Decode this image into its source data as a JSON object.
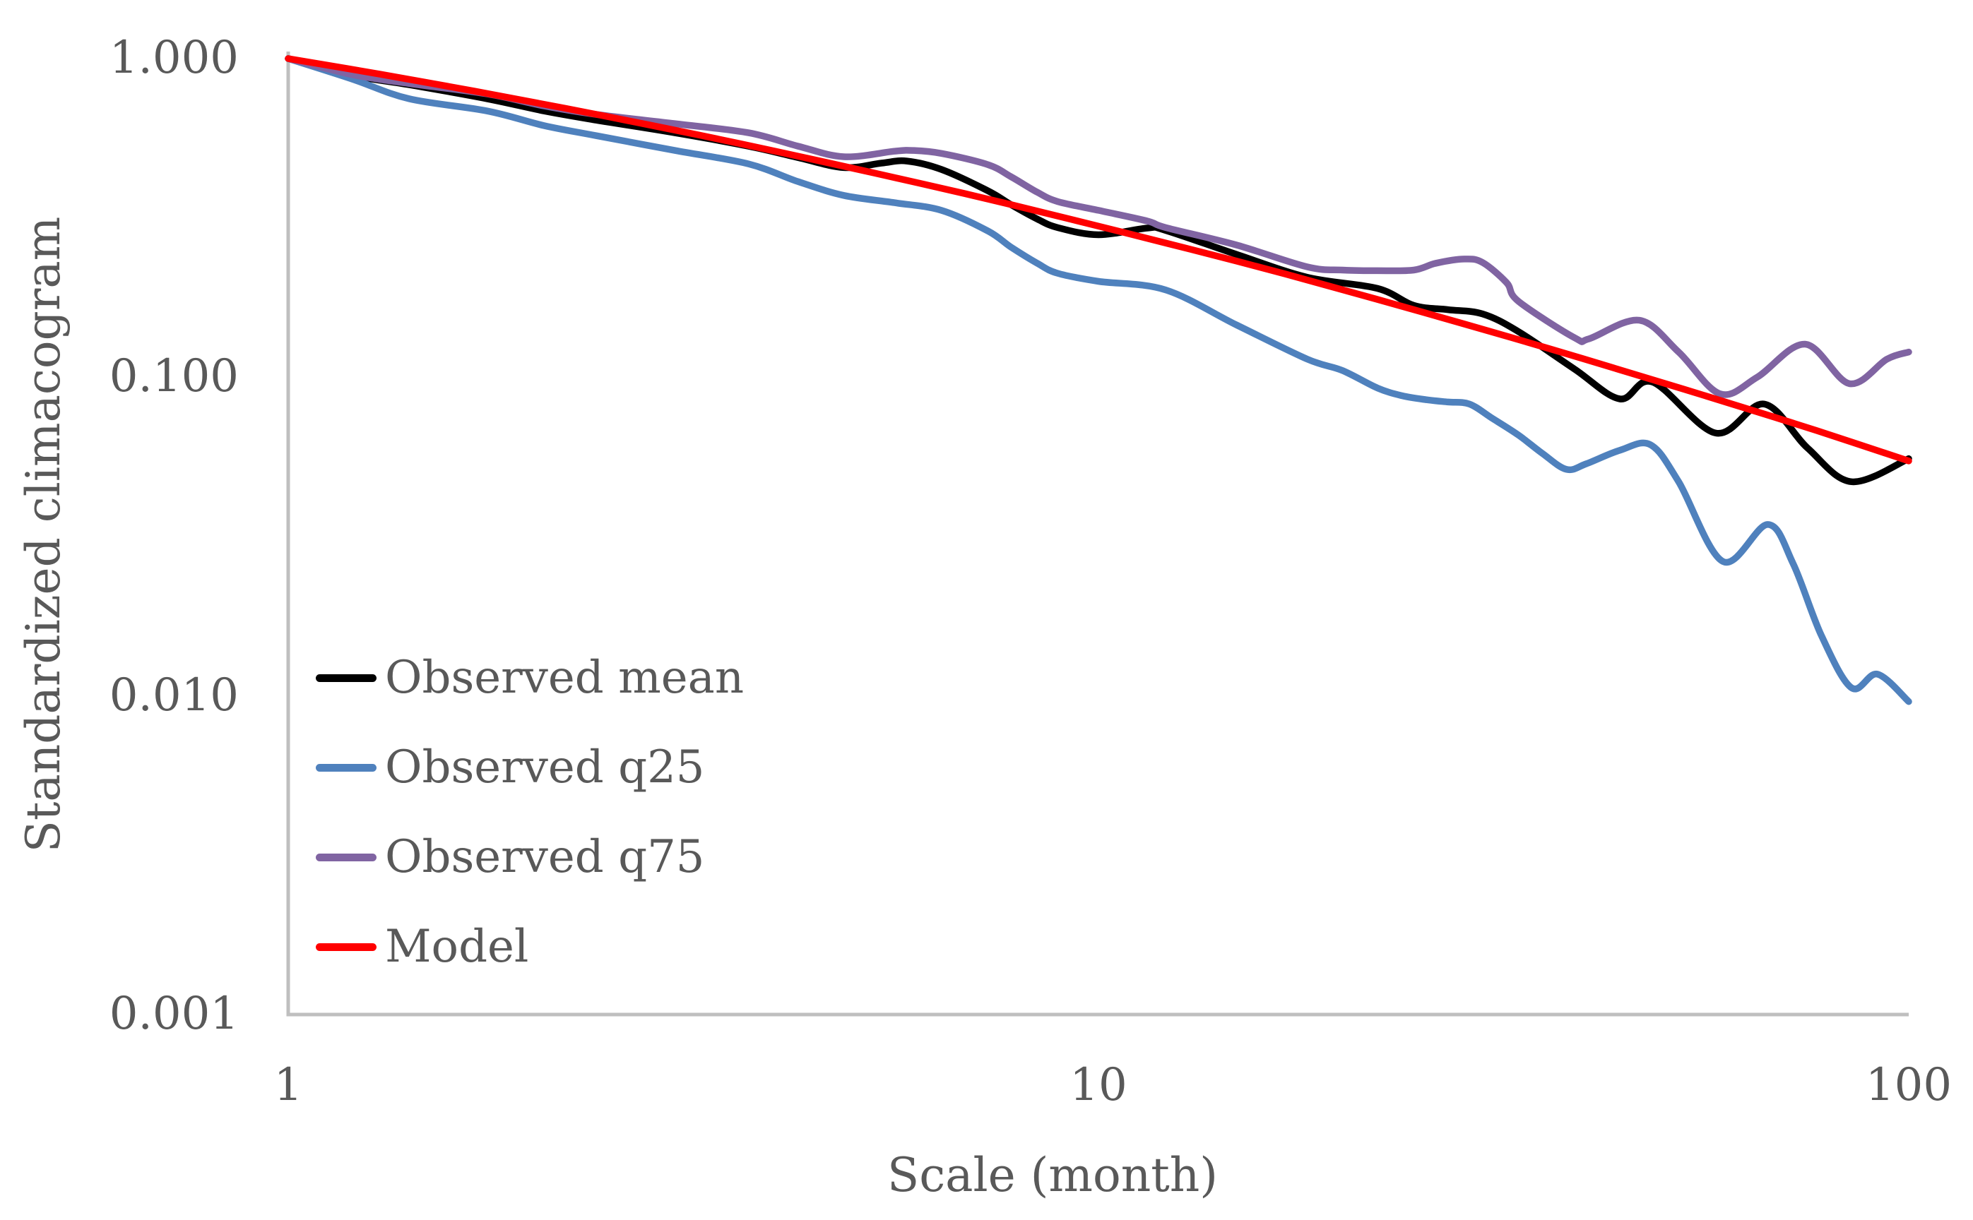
{
  "chart_data": {
    "type": "line",
    "title": "",
    "xlabel": "Scale (month)",
    "ylabel": "Standardized climacogram",
    "x_scale": "log",
    "y_scale": "log",
    "xlim": [
      1,
      100
    ],
    "ylim": [
      0.001,
      1.0
    ],
    "grid": false,
    "legend_position": "inside-lower-left",
    "x_ticks": [
      {
        "label": "1",
        "value": 1
      },
      {
        "label": "10",
        "value": 10
      },
      {
        "label": "100",
        "value": 100
      }
    ],
    "y_ticks": [
      {
        "label": "1.000",
        "value": 1
      },
      {
        "label": "0.100",
        "value": 0.1
      },
      {
        "label": "0.010",
        "value": 0.01
      },
      {
        "label": "0.001",
        "value": 0.001
      }
    ],
    "series": [
      {
        "name": "Observed mean",
        "color": "#000000",
        "points": [
          [
            1,
            1.0
          ],
          [
            1.2,
            0.885
          ],
          [
            1.41,
            0.828
          ],
          [
            1.76,
            0.748
          ],
          [
            2.07,
            0.685
          ],
          [
            2.4,
            0.641
          ],
          [
            3.0,
            0.585
          ],
          [
            3.7,
            0.531
          ],
          [
            4.26,
            0.489
          ],
          [
            4.85,
            0.455
          ],
          [
            5.4,
            0.47
          ],
          [
            5.8,
            0.477
          ],
          [
            6.4,
            0.449
          ],
          [
            7.3,
            0.385
          ],
          [
            7.8,
            0.348
          ],
          [
            8.4,
            0.314
          ],
          [
            8.9,
            0.295
          ],
          [
            10,
            0.28
          ],
          [
            11.5,
            0.294
          ],
          [
            12.1,
            0.289
          ],
          [
            14.8,
            0.243
          ],
          [
            18.1,
            0.206
          ],
          [
            22.1,
            0.19
          ],
          [
            24.5,
            0.168
          ],
          [
            27,
            0.163
          ],
          [
            29.8,
            0.158
          ],
          [
            33,
            0.139
          ],
          [
            38.7,
            0.106
          ],
          [
            44,
            0.0855
          ],
          [
            48.3,
            0.0966
          ],
          [
            57.8,
            0.0668
          ],
          [
            66.3,
            0.0824
          ],
          [
            75,
            0.06
          ],
          [
            85,
            0.047
          ],
          [
            100,
            0.0555
          ]
        ]
      },
      {
        "name": "Observed q25",
        "color": "#4F81BD",
        "points": [
          [
            1,
            1.0
          ],
          [
            1.2,
            0.862
          ],
          [
            1.41,
            0.748
          ],
          [
            1.76,
            0.685
          ],
          [
            2.07,
            0.616
          ],
          [
            2.4,
            0.573
          ],
          [
            3.0,
            0.515
          ],
          [
            3.7,
            0.467
          ],
          [
            4.26,
            0.411
          ],
          [
            4.85,
            0.372
          ],
          [
            5.6,
            0.353
          ],
          [
            6.4,
            0.334
          ],
          [
            7.3,
            0.288
          ],
          [
            7.8,
            0.256
          ],
          [
            8.4,
            0.228
          ],
          [
            8.9,
            0.212
          ],
          [
            10,
            0.2
          ],
          [
            12.1,
            0.188
          ],
          [
            14.8,
            0.146
          ],
          [
            18.1,
            0.114
          ],
          [
            20,
            0.105
          ],
          [
            22.1,
            0.0925
          ],
          [
            23.7,
            0.0875
          ],
          [
            25.4,
            0.085
          ],
          [
            27,
            0.0836
          ],
          [
            28.7,
            0.0824
          ],
          [
            30.6,
            0.0744
          ],
          [
            33,
            0.0658
          ],
          [
            35.3,
            0.0577
          ],
          [
            37.8,
            0.0514
          ],
          [
            40,
            0.0535
          ],
          [
            44,
            0.059
          ],
          [
            48,
            0.0614
          ],
          [
            52,
            0.047
          ],
          [
            59,
            0.0264
          ],
          [
            67,
            0.0345
          ],
          [
            72,
            0.026
          ],
          [
            78,
            0.0155
          ],
          [
            85,
            0.0106
          ],
          [
            91.5,
            0.0117
          ],
          [
            100,
            0.0096
          ]
        ]
      },
      {
        "name": "Observed q75",
        "color": "#8064A2",
        "points": [
          [
            1,
            1.0
          ],
          [
            1.2,
            0.89
          ],
          [
            1.41,
            0.835
          ],
          [
            1.76,
            0.775
          ],
          [
            2.07,
            0.71
          ],
          [
            2.4,
            0.668
          ],
          [
            3.0,
            0.625
          ],
          [
            3.7,
            0.585
          ],
          [
            4.26,
            0.531
          ],
          [
            4.85,
            0.492
          ],
          [
            5.6,
            0.512
          ],
          [
            5.9,
            0.515
          ],
          [
            6.4,
            0.504
          ],
          [
            7.3,
            0.465
          ],
          [
            7.8,
            0.426
          ],
          [
            8.4,
            0.381
          ],
          [
            8.9,
            0.356
          ],
          [
            10,
            0.334
          ],
          [
            11.5,
            0.309
          ],
          [
            12.1,
            0.295
          ],
          [
            14.8,
            0.26
          ],
          [
            18.1,
            0.222
          ],
          [
            20,
            0.217
          ],
          [
            22.1,
            0.216
          ],
          [
            24.5,
            0.217
          ],
          [
            26.1,
            0.228
          ],
          [
            28.3,
            0.235
          ],
          [
            29.8,
            0.229
          ],
          [
            31.9,
            0.198
          ],
          [
            33,
            0.173
          ],
          [
            38.7,
            0.133
          ],
          [
            40.3,
            0.132
          ],
          [
            46.5,
            0.151
          ],
          [
            52,
            0.12
          ],
          [
            58.5,
            0.0887
          ],
          [
            65,
            0.1
          ],
          [
            74.5,
            0.127
          ],
          [
            84.5,
            0.0955
          ],
          [
            94,
            0.114
          ],
          [
            100,
            0.12
          ]
        ]
      },
      {
        "name": "Model",
        "color": "#FF0000",
        "points": [
          [
            1,
            1.0
          ],
          [
            1.3,
            0.893
          ],
          [
            1.7,
            0.79
          ],
          [
            2.2,
            0.698
          ],
          [
            2.8,
            0.618
          ],
          [
            3.6,
            0.542
          ],
          [
            4.6,
            0.473
          ],
          [
            6,
            0.407
          ],
          [
            7.7,
            0.351
          ],
          [
            10,
            0.298
          ],
          [
            13,
            0.252
          ],
          [
            17,
            0.211
          ],
          [
            22,
            0.176
          ],
          [
            28,
            0.148
          ],
          [
            36,
            0.123
          ],
          [
            46,
            0.102
          ],
          [
            60,
            0.083
          ],
          [
            77,
            0.068
          ],
          [
            100,
            0.0546
          ]
        ]
      }
    ],
    "legend_entries": [
      "Observed mean",
      "Observed q25",
      "Observed q75",
      "Model"
    ]
  },
  "colors": {
    "axis_line": "#BFBFBF",
    "text": "#595959",
    "background": "#FFFFFF",
    "series_observed_mean": "#000000",
    "series_observed_q25": "#4F81BD",
    "series_observed_q75": "#8064A2",
    "series_model": "#FF0000"
  }
}
